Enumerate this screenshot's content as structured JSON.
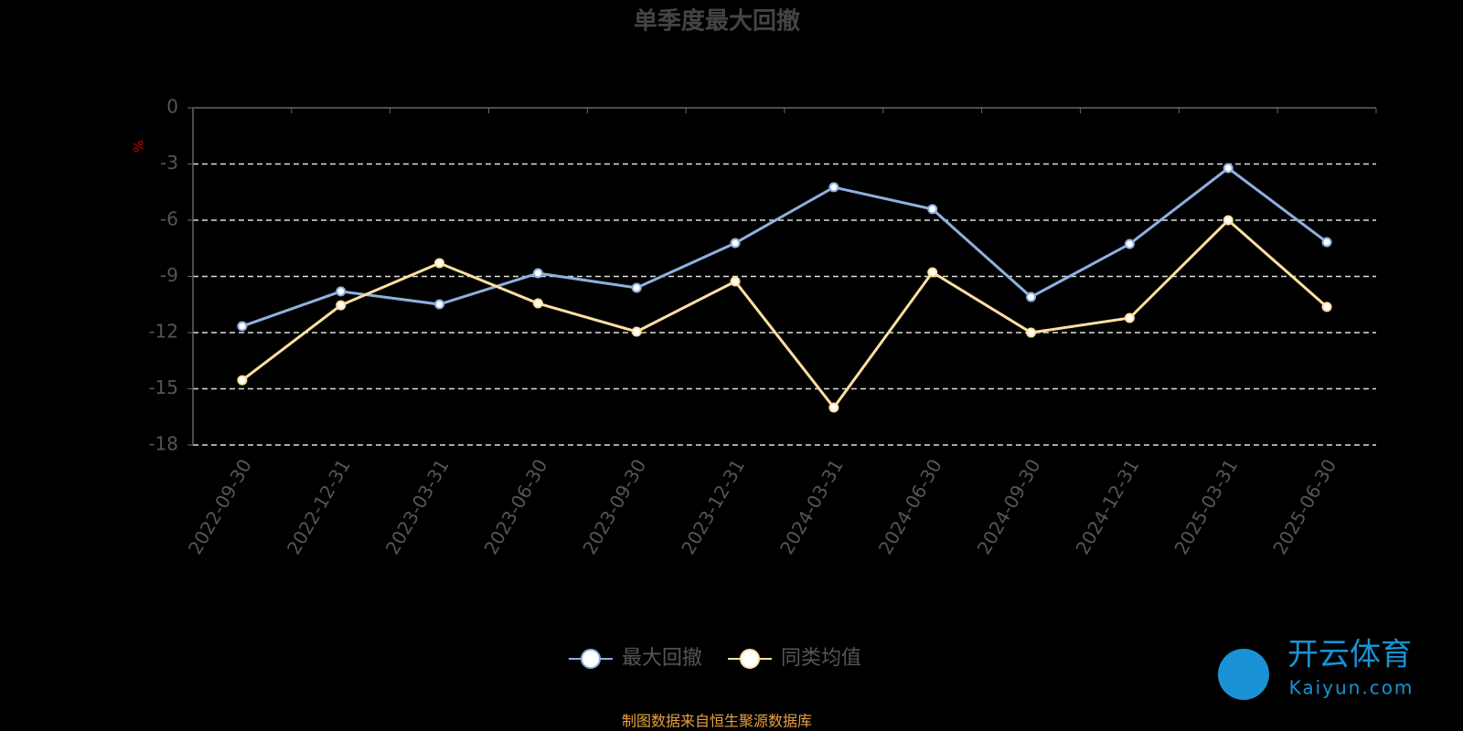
{
  "chart_data": {
    "type": "line",
    "title": "单季度最大回撤",
    "y_label": "%",
    "categories": [
      "2022-09-30",
      "2022-12-31",
      "2023-03-31",
      "2023-06-30",
      "2023-09-30",
      "2023-12-31",
      "2024-03-31",
      "2024-06-30",
      "2024-09-30",
      "2024-12-31",
      "2025-03-31",
      "2025-06-30"
    ],
    "series": [
      {
        "name": "最大回撤",
        "color": "#8fb0e0",
        "values": [
          -11.66,
          -9.8,
          -10.49,
          -8.83,
          -9.61,
          -7.22,
          -4.24,
          -5.41,
          -10.1,
          -7.27,
          -3.22,
          -7.17
        ]
      },
      {
        "name": "同类均值",
        "color": "#ffe0a0",
        "values": [
          -14.54,
          -10.54,
          -8.29,
          -10.44,
          -11.95,
          -9.27,
          -16.0,
          -8.78,
          -12.0,
          -11.22,
          -6.0,
          -10.63
        ]
      }
    ],
    "ylim": [
      -18,
      0
    ],
    "yticks": [
      0,
      -3,
      -6,
      -9,
      -12,
      -15,
      -18
    ],
    "grid": true,
    "legend": "bottom",
    "source": "制图数据来自恒生聚源数据库",
    "watermark": {
      "brand": "开云体育",
      "site": "Kaiyun.com"
    }
  }
}
